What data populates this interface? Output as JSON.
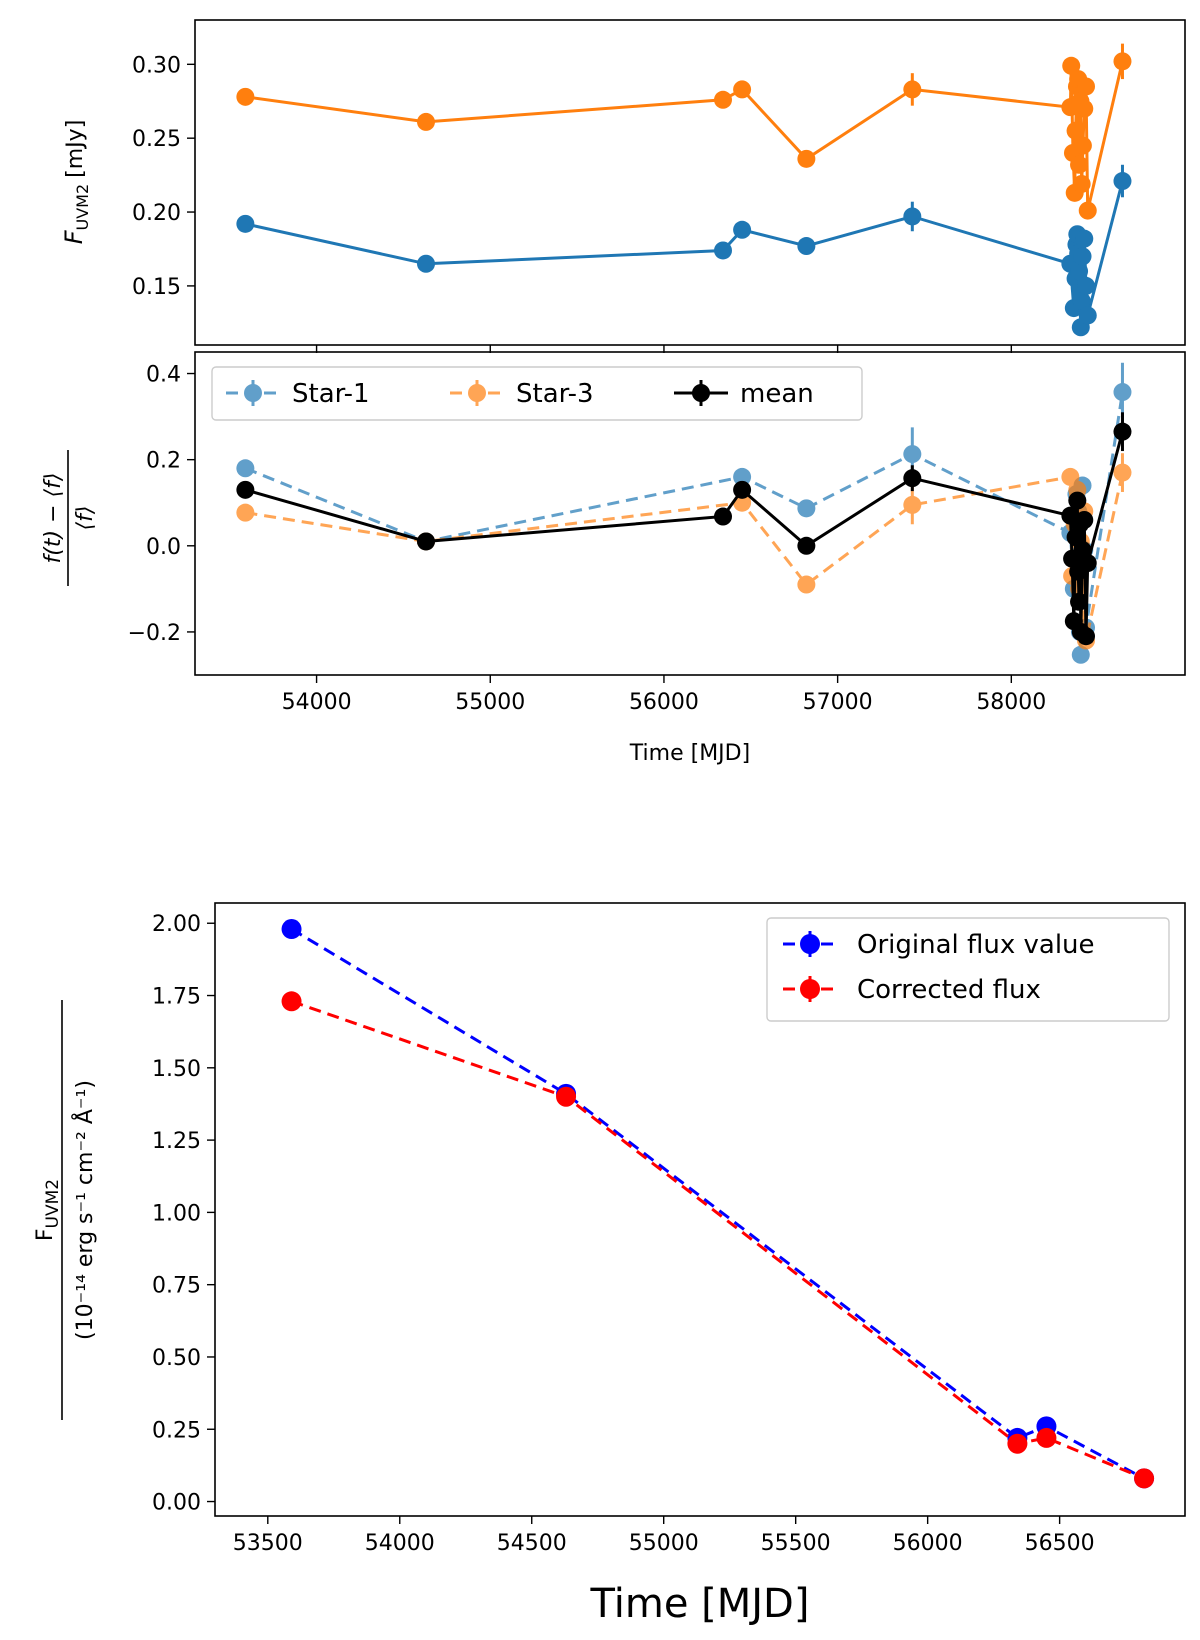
{
  "chart_data": [
    {
      "id": "top",
      "type": "line",
      "xlim": [
        53300,
        59000
      ],
      "ylim": [
        0.11,
        0.33
      ],
      "xticks": [
        54000,
        55000,
        56000,
        57000,
        58000
      ],
      "xtick_labels": [
        "",
        "",
        "",
        "",
        ""
      ],
      "yticks": [
        0.15,
        0.2,
        0.25,
        0.3
      ],
      "ytick_labels": [
        "0.15",
        "0.20",
        "0.25",
        "0.30"
      ],
      "ylabel_main": "F",
      "ylabel_sub": "UVM2",
      "ylabel_unit": "[mJy]",
      "xlabel": "",
      "series": [
        {
          "color": "#1f77b4",
          "style": "solid",
          "x": [
            53590,
            54630,
            56340,
            56450,
            56820,
            57430,
            58340,
            58360,
            58370,
            58375,
            58380,
            58385,
            58390,
            58395,
            58400,
            58405,
            58410,
            58420,
            58430,
            58440,
            58640
          ],
          "y": [
            0.192,
            0.165,
            0.174,
            0.188,
            0.177,
            0.197,
            0.165,
            0.135,
            0.155,
            0.178,
            0.185,
            0.172,
            0.16,
            0.148,
            0.122,
            0.14,
            0.17,
            0.182,
            0.15,
            0.13,
            0.221
          ],
          "yerr": [
            0.002,
            0.002,
            0.002,
            0.003,
            0.002,
            0.01,
            0.003,
            0.003,
            0.003,
            0.003,
            0.003,
            0.003,
            0.003,
            0.003,
            0.003,
            0.003,
            0.003,
            0.003,
            0.003,
            0.003,
            0.011
          ]
        },
        {
          "color": "#ff7f0e",
          "style": "solid",
          "x": [
            53590,
            54630,
            56340,
            56450,
            56820,
            57430,
            58340,
            58345,
            58355,
            58365,
            58370,
            58378,
            58385,
            58390,
            58398,
            58405,
            58412,
            58420,
            58430,
            58440,
            58640
          ],
          "y": [
            0.278,
            0.261,
            0.276,
            0.283,
            0.236,
            0.283,
            0.271,
            0.299,
            0.24,
            0.213,
            0.255,
            0.285,
            0.29,
            0.232,
            0.275,
            0.219,
            0.245,
            0.27,
            0.285,
            0.201,
            0.302
          ],
          "yerr": [
            0.002,
            0.002,
            0.002,
            0.003,
            0.002,
            0.011,
            0.003,
            0.003,
            0.003,
            0.003,
            0.003,
            0.003,
            0.003,
            0.003,
            0.003,
            0.003,
            0.003,
            0.003,
            0.003,
            0.003,
            0.012
          ]
        }
      ]
    },
    {
      "id": "middle",
      "type": "line",
      "xlim": [
        53300,
        59000
      ],
      "ylim": [
        -0.3,
        0.45
      ],
      "xticks": [
        54000,
        55000,
        56000,
        57000,
        58000
      ],
      "xtick_labels": [
        "54000",
        "55000",
        "56000",
        "57000",
        "58000"
      ],
      "yticks": [
        -0.2,
        0.0,
        0.2,
        0.4
      ],
      "ytick_labels": [
        "−0.2",
        "0.0",
        "0.2",
        "0.4"
      ],
      "xlabel": "Time [MJD]",
      "ylabel_num": "f(t) − ⟨f⟩",
      "ylabel_den": "⟨f⟩",
      "legend": [
        "Star-1",
        "Star-3",
        "mean"
      ],
      "series": [
        {
          "name": "Star-1",
          "color": "#1f77b4",
          "style": "dashed",
          "alpha": 0.7,
          "x": [
            53590,
            54630,
            56450,
            56820,
            57430,
            58340,
            58360,
            58375,
            58385,
            58395,
            58400,
            58410,
            58420,
            58430,
            58640
          ],
          "y": [
            0.18,
            0.01,
            0.16,
            0.087,
            0.213,
            0.03,
            -0.1,
            0.12,
            0.08,
            -0.2,
            -0.253,
            0.14,
            -0.01,
            -0.19,
            0.357
          ],
          "yerr": [
            0.005,
            0.005,
            0.008,
            0.005,
            0.062,
            0.01,
            0.01,
            0.01,
            0.01,
            0.01,
            0.01,
            0.01,
            0.01,
            0.01,
            0.068
          ]
        },
        {
          "name": "Star-3",
          "color": "#ff7f0e",
          "style": "dashed",
          "alpha": 0.7,
          "x": [
            53590,
            54630,
            56450,
            56820,
            57430,
            58340,
            58350,
            58365,
            58380,
            58390,
            58400,
            58410,
            58420,
            58430,
            58640
          ],
          "y": [
            0.077,
            0.01,
            0.1,
            -0.09,
            0.095,
            0.16,
            -0.07,
            0.05,
            0.13,
            -0.1,
            0.01,
            -0.2,
            0.08,
            -0.22,
            0.17
          ],
          "yerr": [
            0.005,
            0.005,
            0.008,
            0.005,
            0.045,
            0.01,
            0.01,
            0.01,
            0.01,
            0.01,
            0.01,
            0.01,
            0.01,
            0.01,
            0.045
          ]
        },
        {
          "name": "mean",
          "color": "#000000",
          "style": "solid",
          "alpha": 1.0,
          "x": [
            53590,
            54630,
            56340,
            56450,
            56820,
            57430,
            58340,
            58350,
            58360,
            58370,
            58380,
            58385,
            58390,
            58395,
            58400,
            58410,
            58420,
            58430,
            58440,
            58640
          ],
          "y": [
            0.13,
            0.01,
            0.068,
            0.13,
            0.0,
            0.157,
            0.07,
            -0.03,
            -0.175,
            0.02,
            0.105,
            -0.06,
            -0.13,
            0.05,
            -0.2,
            -0.01,
            0.06,
            -0.21,
            -0.04,
            0.265
          ],
          "yerr": [
            0.005,
            0.005,
            0.005,
            0.01,
            0.005,
            0.03,
            0.01,
            0.01,
            0.01,
            0.01,
            0.01,
            0.01,
            0.01,
            0.01,
            0.01,
            0.01,
            0.01,
            0.01,
            0.01,
            0.045
          ]
        }
      ]
    },
    {
      "id": "bottom",
      "type": "line",
      "xlim": [
        53300,
        56975
      ],
      "ylim": [
        -0.05,
        2.07
      ],
      "xticks": [
        53500,
        54000,
        54500,
        55000,
        55500,
        56000,
        56500
      ],
      "xtick_labels": [
        "53500",
        "54000",
        "54500",
        "55000",
        "55500",
        "56000",
        "56500"
      ],
      "yticks": [
        0.0,
        0.25,
        0.5,
        0.75,
        1.0,
        1.25,
        1.5,
        1.75,
        2.0
      ],
      "ytick_labels": [
        "0.00",
        "0.25",
        "0.50",
        "0.75",
        "1.00",
        "1.25",
        "1.50",
        "1.75",
        "2.00"
      ],
      "xlabel": "Time [MJD]",
      "ylabel_num_main": "F",
      "ylabel_num_sub": "UVM2",
      "ylabel_den": "(10⁻¹⁴ erg s⁻¹ cm⁻² Å⁻¹)",
      "legend": [
        "Original flux value",
        "Corrected flux"
      ],
      "series": [
        {
          "name": "Original flux value",
          "color": "#0000ff",
          "style": "dashed",
          "x": [
            53590,
            54630,
            56340,
            56450,
            56820
          ],
          "y": [
            1.98,
            1.41,
            0.22,
            0.26,
            0.08
          ],
          "yerr": [
            0.01,
            0.01,
            0.01,
            0.01,
            0.01
          ]
        },
        {
          "name": "Corrected flux",
          "color": "#ff0000",
          "style": "dashed",
          "x": [
            53590,
            54630,
            56340,
            56450,
            56820
          ],
          "y": [
            1.73,
            1.4,
            0.2,
            0.22,
            0.08
          ],
          "yerr": [
            0.01,
            0.01,
            0.01,
            0.01,
            0.01
          ]
        }
      ]
    }
  ]
}
